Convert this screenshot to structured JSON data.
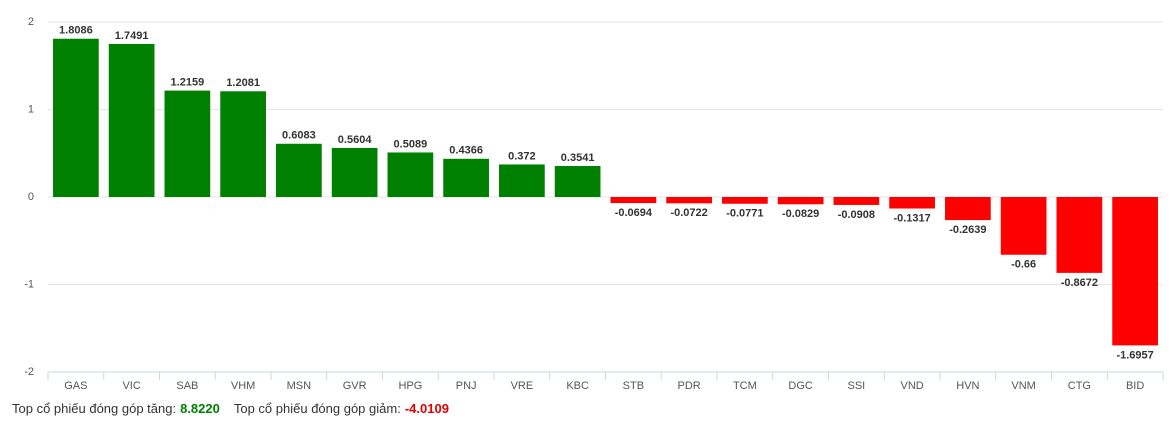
{
  "chart_data": {
    "type": "bar",
    "categories": [
      "GAS",
      "VIC",
      "SAB",
      "VHM",
      "MSN",
      "GVR",
      "HPG",
      "PNJ",
      "VRE",
      "KBC",
      "STB",
      "PDR",
      "TCM",
      "DGC",
      "SSI",
      "VND",
      "HVN",
      "VNM",
      "CTG",
      "BID"
    ],
    "values": [
      1.8086,
      1.7491,
      1.2159,
      1.2081,
      0.6083,
      0.5604,
      0.5089,
      0.4366,
      0.372,
      0.3541,
      -0.0694,
      -0.0722,
      -0.0771,
      -0.0829,
      -0.0908,
      -0.1317,
      -0.2639,
      -0.66,
      -0.8672,
      -1.6957
    ],
    "positive_color": "#008000",
    "negative_color": "#ff0000",
    "ylim": [
      -2,
      2
    ],
    "yticks": [
      -2,
      -1,
      0,
      1,
      2
    ],
    "grid": true
  },
  "footer": {
    "gain_label": "Top cổ phiếu đóng góp tăng:",
    "gain_value": "8.8220",
    "loss_label": "Top cổ phiếu đóng góp giảm:",
    "loss_value": "-4.0109"
  }
}
